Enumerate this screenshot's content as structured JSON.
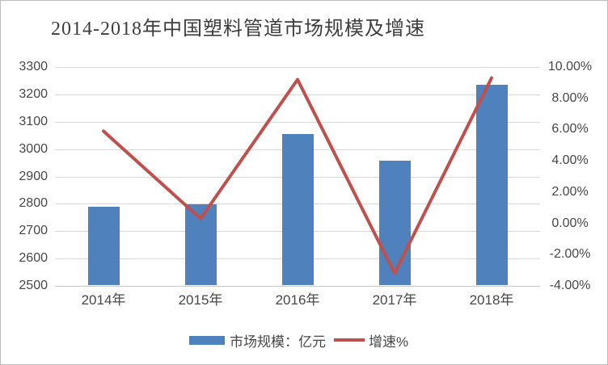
{
  "title": "2014-2018年中国塑料管道市场规模及增速",
  "legend": {
    "bar_label": "市场规模：亿元",
    "line_label": "增速%"
  },
  "colors": {
    "bar": "#4f81bd",
    "line": "#c0504d",
    "gridline": "#d9d9d9",
    "axis_line": "#c6c6c6",
    "text": "#474747"
  },
  "chart_data": {
    "type": "bar+line",
    "title": "2014-2018年中国塑料管道市场规模及增速",
    "categories": [
      "2014年",
      "2015年",
      "2016年",
      "2017年",
      "2018年"
    ],
    "series": [
      {
        "name": "市场规模：亿元",
        "type": "bar",
        "axis": "left",
        "values": [
          2787,
          2795,
          3053,
          2956,
          3232
        ]
      },
      {
        "name": "增速%",
        "type": "line",
        "axis": "right",
        "values": [
          5.9,
          0.3,
          9.2,
          -3.2,
          9.3
        ]
      }
    ],
    "left_axis": {
      "min": 2500,
      "max": 3300,
      "step": 100,
      "tick_labels": [
        "3300",
        "3200",
        "3100",
        "3000",
        "2900",
        "2800",
        "2700",
        "2600",
        "2500"
      ]
    },
    "right_axis": {
      "min": -4,
      "max": 10,
      "step": 2,
      "tick_labels": [
        "10.00%",
        "8.00%",
        "6.00%",
        "4.00%",
        "2.00%",
        "0.00%",
        "-2.00%",
        "-4.00%"
      ]
    },
    "grid": true,
    "legend_position": "bottom"
  }
}
